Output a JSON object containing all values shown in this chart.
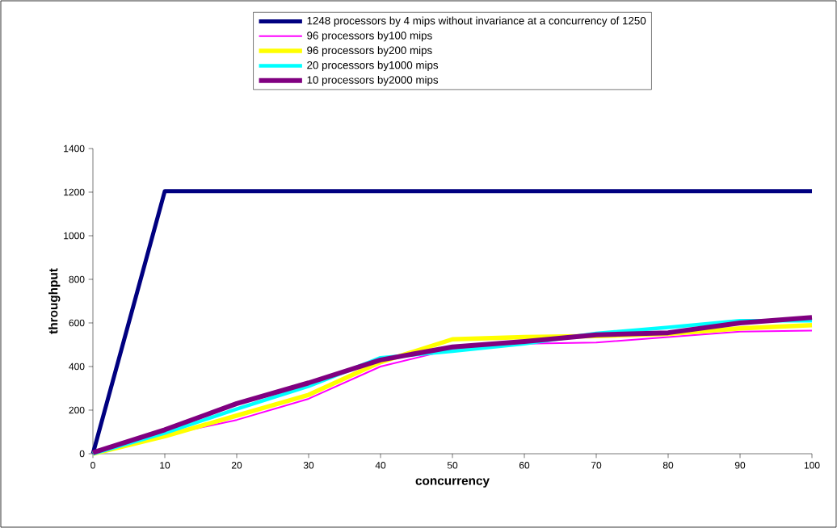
{
  "chart_data": {
    "type": "line",
    "xlabel": "concurrency",
    "ylabel": "throughput",
    "x": [
      0,
      10,
      20,
      30,
      40,
      50,
      60,
      70,
      80,
      90,
      100
    ],
    "series": [
      {
        "name": "1248 processors by 4 mips without invariance at a concurrency of 1250",
        "color": "#000080",
        "values": [
          0,
          1205,
          1205,
          1205,
          1205,
          1205,
          1205,
          1205,
          1205,
          1205,
          1205
        ]
      },
      {
        "name": "96 processors by100 mips",
        "color": "#ff00ff",
        "values": [
          0,
          85,
          155,
          252,
          400,
          480,
          505,
          510,
          535,
          560,
          565
        ]
      },
      {
        "name": "96 processors by200 mips",
        "color": "#ffff00",
        "values": [
          0,
          80,
          175,
          270,
          420,
          525,
          535,
          540,
          550,
          575,
          590
        ]
      },
      {
        "name": "20 processors by1000 mips",
        "color": "#00ffff",
        "values": [
          0,
          95,
          205,
          310,
          440,
          470,
          505,
          552,
          580,
          610,
          610
        ]
      },
      {
        "name": "10 processors by2000 mips",
        "color": "#800080",
        "values": [
          5,
          110,
          230,
          325,
          430,
          490,
          515,
          545,
          555,
          600,
          625
        ]
      }
    ],
    "xlim": [
      0,
      100
    ],
    "ylim": [
      0,
      1400
    ],
    "xticks": [
      0,
      10,
      20,
      30,
      40,
      50,
      60,
      70,
      80,
      90,
      100
    ],
    "yticks": [
      0,
      200,
      400,
      600,
      800,
      1000,
      1200,
      1400
    ],
    "grid": false,
    "legend": "top",
    "marker": "none",
    "line_style": "solid"
  }
}
